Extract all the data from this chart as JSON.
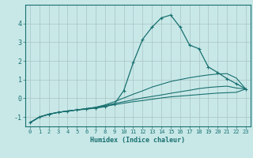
{
  "xlabel": "Humidex (Indice chaleur)",
  "ylabel": "",
  "bg_color": "#c8e8e8",
  "grid_color": "#b0c8c8",
  "line_color": "#1a7070",
  "xlim": [
    -0.5,
    23.5
  ],
  "ylim": [
    -1.5,
    5.0
  ],
  "xticks": [
    0,
    1,
    2,
    3,
    4,
    5,
    6,
    7,
    8,
    9,
    10,
    11,
    12,
    13,
    14,
    15,
    16,
    17,
    18,
    19,
    20,
    21,
    22,
    23
  ],
  "yticks": [
    -1,
    0,
    1,
    2,
    3,
    4
  ],
  "series": [
    {
      "x": [
        0,
        1,
        2,
        3,
        4,
        5,
        6,
        7,
        8,
        9,
        10,
        11,
        12,
        13,
        14,
        15,
        16,
        17,
        18,
        19,
        20,
        21,
        22,
        23
      ],
      "y": [
        -1.3,
        -1.0,
        -0.85,
        -0.75,
        -0.68,
        -0.62,
        -0.55,
        -0.48,
        -0.35,
        -0.18,
        0.02,
        0.22,
        0.4,
        0.6,
        0.75,
        0.9,
        1.0,
        1.1,
        1.18,
        1.25,
        1.3,
        1.32,
        1.08,
        0.5
      ],
      "marker": false
    },
    {
      "x": [
        0,
        1,
        2,
        3,
        4,
        5,
        6,
        7,
        8,
        9,
        10,
        11,
        12,
        13,
        14,
        15,
        16,
        17,
        18,
        19,
        20,
        21,
        22,
        23
      ],
      "y": [
        -1.3,
        -1.0,
        -0.85,
        -0.75,
        -0.68,
        -0.62,
        -0.55,
        -0.48,
        -0.38,
        -0.28,
        -0.18,
        -0.08,
        0.02,
        0.1,
        0.18,
        0.27,
        0.35,
        0.43,
        0.52,
        0.58,
        0.62,
        0.65,
        0.55,
        0.5
      ],
      "marker": false
    },
    {
      "x": [
        0,
        1,
        2,
        3,
        4,
        5,
        6,
        7,
        8,
        9,
        10,
        11,
        12,
        13,
        14,
        15,
        16,
        17,
        18,
        19,
        20,
        21,
        22,
        23
      ],
      "y": [
        -1.3,
        -1.0,
        -0.85,
        -0.75,
        -0.68,
        -0.62,
        -0.56,
        -0.5,
        -0.42,
        -0.34,
        -0.26,
        -0.18,
        -0.12,
        -0.05,
        0.02,
        0.08,
        0.12,
        0.16,
        0.2,
        0.24,
        0.28,
        0.3,
        0.32,
        0.5
      ],
      "marker": false
    },
    {
      "x": [
        0,
        1,
        2,
        3,
        4,
        5,
        6,
        7,
        8,
        9,
        10,
        11,
        12,
        13,
        14,
        15,
        16,
        17,
        18,
        19,
        20,
        21,
        22,
        23
      ],
      "y": [
        -1.3,
        -1.0,
        -0.85,
        -0.75,
        -0.68,
        -0.62,
        -0.58,
        -0.52,
        -0.45,
        -0.3,
        0.42,
        1.9,
        3.15,
        3.8,
        4.3,
        4.45,
        3.8,
        2.85,
        2.65,
        1.68,
        1.38,
        1.05,
        0.78,
        0.5
      ],
      "marker": true
    }
  ]
}
